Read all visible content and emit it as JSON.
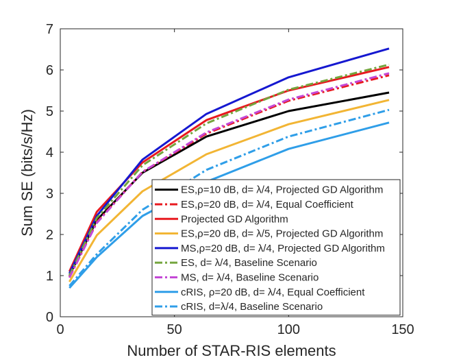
{
  "chart_data": {
    "type": "line",
    "title": "",
    "xlabel": "Number of STAR-RIS elements",
    "ylabel": "Sum SE (bits/s/Hz)",
    "xlim": [
      0,
      150
    ],
    "ylim": [
      0,
      7
    ],
    "xticks": [
      "0",
      "50",
      "100",
      "150"
    ],
    "yticks": [
      "0",
      "1",
      "2",
      "3",
      "4",
      "5",
      "6",
      "7"
    ],
    "grid": false,
    "legend_position": "bottom-right",
    "x": [
      4,
      16,
      36,
      64,
      100,
      144
    ],
    "series": [
      {
        "name": "ES,ρ=10 dB, d= λ/4, Projected GD Algorithm",
        "color": "#000000",
        "dash": "solid",
        "values": [
          1.0,
          2.35,
          3.5,
          4.38,
          5.0,
          5.45
        ]
      },
      {
        "name": "ES,ρ=20 dB, d= λ/4, Equal Coefficient",
        "color": "#e8191f",
        "dash": "dashdot",
        "values": [
          0.97,
          2.3,
          3.52,
          4.45,
          5.25,
          5.87
        ]
      },
      {
        "name": "Projected GD Algorithm",
        "color": "#e8191f",
        "dash": "solid",
        "values": [
          1.1,
          2.55,
          3.75,
          4.78,
          5.5,
          6.07
        ]
      },
      {
        "name": "ES,ρ=20 dB, d= λ/5, Projected GD Algorithm",
        "color": "#f2b534",
        "dash": "solid",
        "values": [
          0.85,
          1.98,
          3.05,
          3.95,
          4.68,
          5.27
        ]
      },
      {
        "name": "MS,ρ=20 dB, d= λ/4, Projected GD Algorithm",
        "color": "#1518d0",
        "dash": "solid",
        "values": [
          1.05,
          2.45,
          3.82,
          4.93,
          5.82,
          6.52
        ]
      },
      {
        "name": "ES, d= λ/4, Baseline Scenario",
        "color": "#74a53d",
        "dash": "dashdot",
        "values": [
          1.0,
          2.4,
          3.68,
          4.7,
          5.52,
          6.13
        ]
      },
      {
        "name": "MS, d= λ/4, Baseline Scenario",
        "color": "#c448d6",
        "dash": "dashdot",
        "values": [
          0.95,
          2.28,
          3.52,
          4.48,
          5.28,
          5.92
        ]
      },
      {
        "name": "cRIS, ρ=20 dB, d= λ/4, Equal Coefficient",
        "color": "#2f9ee8",
        "dash": "solid",
        "values": [
          0.7,
          1.45,
          2.45,
          3.28,
          4.08,
          4.72
        ]
      },
      {
        "name": "cRIS, d=λ/4, Baseline Scenario",
        "color": "#2f9ee8",
        "dash": "dashdot",
        "values": [
          0.75,
          1.52,
          2.6,
          3.57,
          4.38,
          5.03
        ]
      }
    ]
  }
}
